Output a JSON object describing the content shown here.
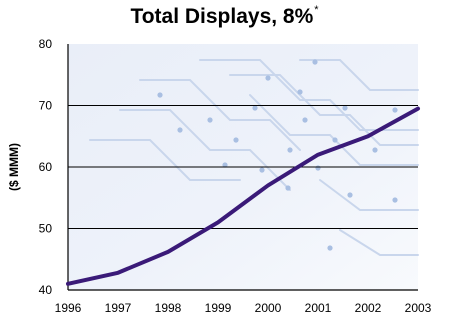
{
  "chart_data": {
    "type": "line",
    "title": "Total Displays, 8%",
    "title_mark": "*",
    "xlabel": "",
    "ylabel": "($ MMM)",
    "x": [
      "1996",
      "1997",
      "1998",
      "1999",
      "2000",
      "2001",
      "2002",
      "2003"
    ],
    "series": [
      {
        "values": [
          41,
          42.8,
          46.2,
          51,
          57,
          62,
          65,
          69.5
        ]
      }
    ],
    "ylim": [
      40,
      80
    ],
    "yticks": [
      "40",
      "50",
      "60",
      "70",
      "80"
    ],
    "grid": "horizontal",
    "legend": "none",
    "colors": {
      "line": "#3a1a78",
      "grid": "#000000",
      "background_top": "#e9eef8",
      "background_bottom": "#f6f8fc"
    }
  }
}
